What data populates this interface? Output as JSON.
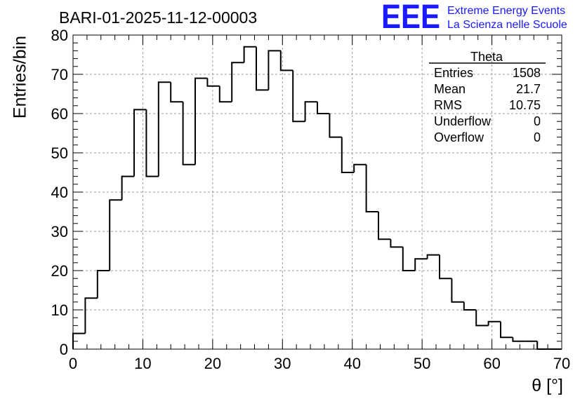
{
  "chart_data": {
    "type": "histogram",
    "title": "BARI-01-2025-11-12-00003",
    "xlabel": "θ [°]",
    "ylabel": "Entries/bin",
    "xlim": [
      0,
      70
    ],
    "ylim": [
      0,
      80
    ],
    "bin_width": 1.75,
    "bin_start": 0,
    "values": [
      4,
      13,
      20,
      38,
      44,
      61,
      44,
      68,
      63,
      47,
      69,
      67,
      63,
      73,
      77,
      66,
      76,
      71,
      58,
      63,
      60,
      54,
      45,
      47,
      35,
      28,
      26,
      20,
      23,
      24,
      18,
      12,
      10,
      6,
      7,
      3,
      2,
      2,
      0,
      0
    ],
    "x_ticks": [
      "0",
      "10",
      "20",
      "30",
      "40",
      "50",
      "60",
      "70"
    ],
    "y_ticks": [
      "0",
      "10",
      "20",
      "30",
      "40",
      "50",
      "60",
      "70",
      "80"
    ],
    "grid": true,
    "line_color": "#000000"
  },
  "stats_box": {
    "title": "Theta",
    "rows": [
      {
        "label": "Entries",
        "value": "1508"
      },
      {
        "label": "Mean",
        "value": "21.7"
      },
      {
        "label": "RMS",
        "value": "10.75"
      },
      {
        "label": "Underflow",
        "value": "0"
      },
      {
        "label": "Overflow",
        "value": "0"
      }
    ]
  },
  "brand": {
    "logo": "EEE",
    "line1": "Extreme Energy Events",
    "line2": "La Scienza nelle Scuole",
    "color": "#1a1aff"
  }
}
